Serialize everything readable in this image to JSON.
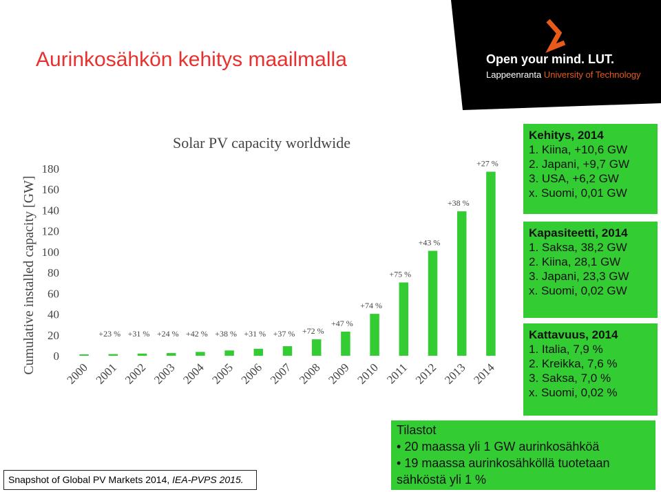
{
  "header": {
    "title": "Aurinkosähkön kehitys maailmalla",
    "logo_line1": "Open your mind. LUT.",
    "logo_line2a": "Lappeenranta ",
    "logo_line2b": "University of Technology"
  },
  "chart_data": {
    "type": "bar",
    "title": "Solar PV capacity worldwide",
    "y_label": "Cumulative installed capacity [GW]",
    "categories": [
      "2000",
      "2001",
      "2002",
      "2003",
      "2004",
      "2005",
      "2006",
      "2007",
      "2008",
      "2009",
      "2010",
      "2011",
      "2012",
      "2013",
      "2014"
    ],
    "values": [
      1.3,
      1.6,
      2.1,
      2.6,
      3.7,
      5.1,
      6.7,
      9.2,
      15.8,
      23.2,
      40.3,
      70.5,
      100.9,
      138.9,
      177
    ],
    "annotations": [
      null,
      "+23 %",
      "+31 %",
      "+24 %",
      "+42 %",
      "+38 %",
      "+31 %",
      "+37 %",
      "+72 %",
      "+47 %",
      "+74 %",
      "+75 %",
      "+43 %",
      "+38 %",
      "+27 %"
    ],
    "color": "#33cc33",
    "ylim": [
      0,
      190
    ],
    "yticks": [
      0,
      20,
      40,
      60,
      80,
      100,
      120,
      140,
      160,
      180
    ],
    "grid": false
  },
  "source": {
    "text": "Snapshot of Global PV Markets 2014, ",
    "italic": "IEA-PVPS 2015."
  },
  "side_boxes": [
    {
      "heading": "Kehitys, 2014",
      "lines": [
        "1. Kiina, +10,6 GW",
        "2. Japani, +9,7 GW",
        "3. USA, +6,2 GW",
        "x. Suomi, 0,01 GW"
      ]
    },
    {
      "heading": "Kapasiteetti, 2014",
      "lines": [
        "1. Saksa, 38,2 GW",
        "2. Kiina, 28,1 GW",
        "3. Japani, 23,3 GW",
        "x. Suomi, 0,02 GW"
      ]
    },
    {
      "heading": "Kattavuus, 2014",
      "lines": [
        "1. Italia, 7,9 %",
        "2. Kreikka, 7,6 %",
        "3. Saksa, 7,0 %",
        "x. Suomi, 0,02 %"
      ]
    }
  ],
  "stats": {
    "heading": "Tilastot",
    "bullets": [
      "20 maassa yli 1 GW aurinkosähköä",
      "19 maassa aurinkosähköllä tuotetaan sähköstä yli 1 %"
    ]
  }
}
